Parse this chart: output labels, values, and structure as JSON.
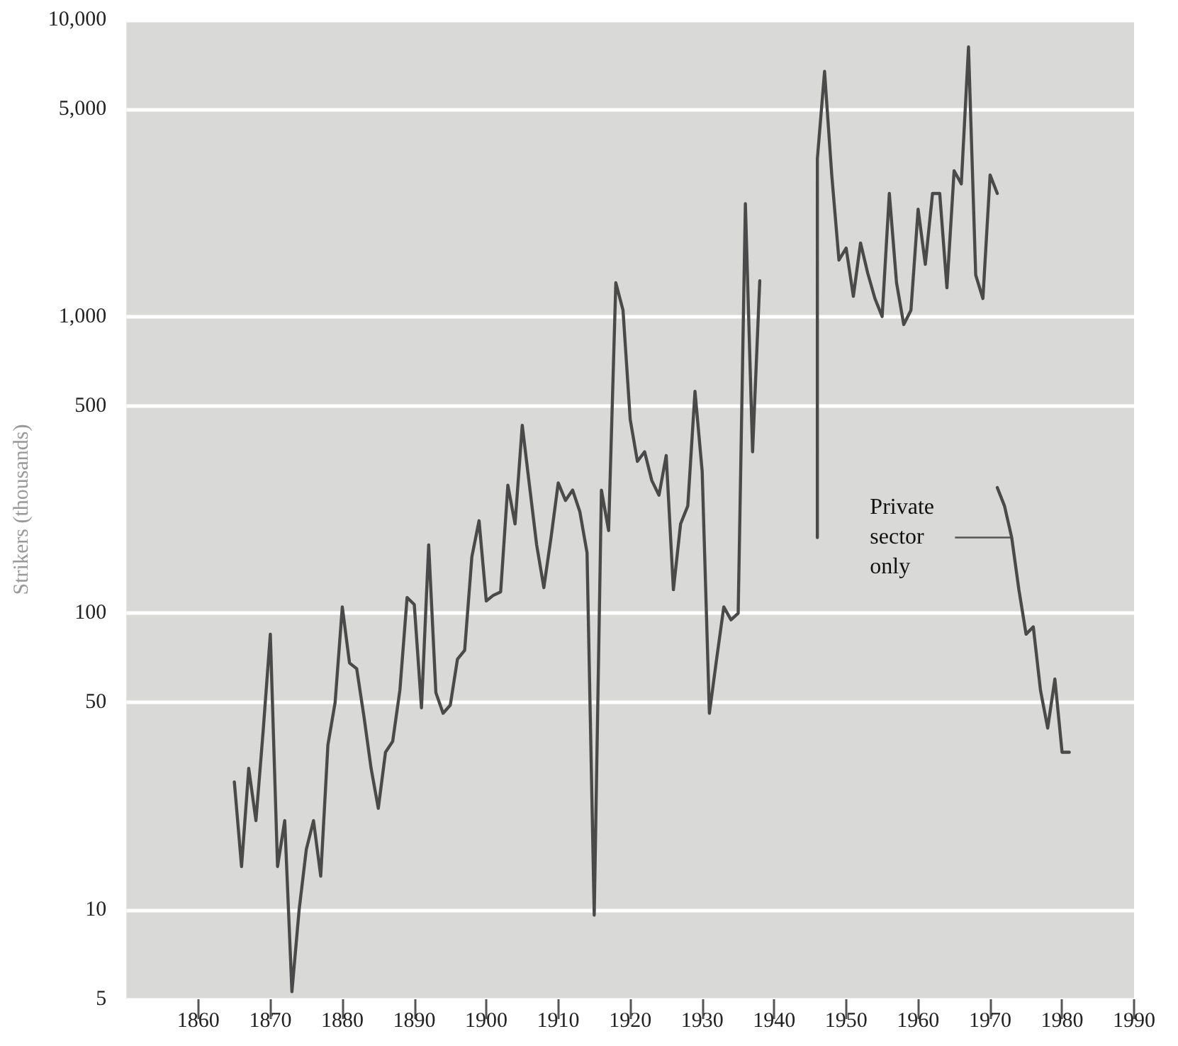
{
  "chart_data": {
    "type": "line",
    "ylabel": "Strikers (thousands)",
    "log": "y",
    "grid": "y",
    "legend": "right",
    "marker": "none",
    "line_style": "solid",
    "xlim": [
      1850,
      1990
    ],
    "xticks": [
      1860,
      1870,
      1880,
      1890,
      1900,
      1910,
      1920,
      1930,
      1940,
      1950,
      1960,
      1970,
      1980,
      1990
    ],
    "ylim": [
      5,
      10000
    ],
    "yticks": [
      5,
      10,
      50,
      100,
      500,
      {
        "value": 1000,
        "label": "1,000"
      },
      {
        "value": 5000,
        "label": "5,000"
      },
      {
        "value": 10000,
        "label": "10,000"
      }
    ],
    "series": [
      {
        "color": "#4a4a4a",
        "x": [
          1865,
          1866,
          1867,
          1868,
          1869,
          1870,
          1871,
          1872,
          1873,
          1874,
          1875,
          1876,
          1877,
          1878,
          1879,
          1880,
          1881,
          1882,
          1883,
          1884,
          1885,
          1886,
          1887,
          1888,
          1889,
          1890,
          1891,
          1892,
          1893,
          1894,
          1895,
          1896,
          1897,
          1898,
          1899,
          1900,
          1901,
          1902,
          1903,
          1904,
          1905,
          1906,
          1907,
          1908,
          1909,
          1910,
          1911,
          1912,
          1913,
          1914,
          1915,
          1916,
          1917,
          1918,
          1919,
          1920,
          1921,
          1922,
          1923,
          1924,
          1925,
          1926,
          1927,
          1928,
          1929,
          1930,
          1931,
          1932,
          1933,
          1934,
          1935,
          1936,
          1937,
          1938,
          1939,
          1940,
          1941,
          1942,
          1943,
          1944,
          1945,
          1946,
          1946,
          1947,
          1948,
          1949,
          1950,
          1951,
          1952,
          1953,
          1954,
          1955,
          1956,
          1957,
          1958,
          1959,
          1960,
          1961,
          1962,
          1963,
          1964,
          1965,
          1966,
          1967,
          1968,
          1969,
          1970,
          1971
        ],
        "values": [
          27,
          14,
          30,
          20,
          40,
          85,
          14,
          20,
          5.3,
          10,
          16,
          20,
          13,
          36,
          50,
          105,
          68,
          65,
          45,
          30,
          22,
          34,
          37,
          55,
          113,
          107,
          48,
          170,
          54,
          46,
          49,
          70,
          75,
          155,
          205,
          110,
          115,
          118,
          270,
          200,
          430,
          270,
          170,
          122,
          180,
          275,
          240,
          260,
          220,
          160,
          9.6,
          260,
          190,
          1300,
          1050,
          450,
          325,
          350,
          280,
          250,
          340,
          120,
          200,
          230,
          560,
          300,
          46,
          70,
          105,
          95,
          100,
          2400,
          350,
          1320,
          null,
          null,
          null,
          null,
          null,
          null,
          null,
          180,
          3400,
          6700,
          3000,
          1550,
          1700,
          1170,
          1770,
          1400,
          1150,
          1000,
          2600,
          1300,
          940,
          1050,
          2300,
          1500,
          2600,
          2600,
          1250,
          3100,
          2800,
          8100,
          1380,
          1150,
          3000,
          2600
        ]
      },
      {
        "name": "Private sector only",
        "color": "#4a4a4a",
        "x": [
          1971,
          1972,
          1973,
          1974,
          1975,
          1976,
          1977,
          1978,
          1979,
          1980,
          1981
        ],
        "values": [
          265,
          230,
          180,
          120,
          85,
          90,
          55,
          41,
          60,
          34,
          34
        ]
      }
    ]
  }
}
